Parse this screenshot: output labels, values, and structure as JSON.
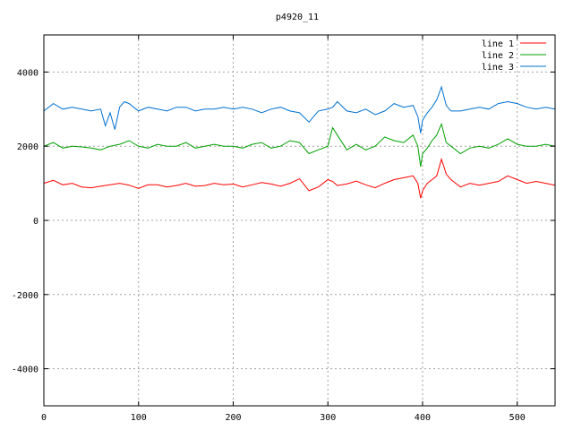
{
  "chart_data": {
    "type": "line",
    "title": "p4920_11",
    "xlabel": "",
    "ylabel": "",
    "xlim": [
      0,
      540
    ],
    "ylim": [
      -5000,
      5000
    ],
    "x_ticks": [
      0,
      100,
      200,
      300,
      400,
      500
    ],
    "y_ticks": [
      -4000,
      -2000,
      0,
      2000,
      4000
    ],
    "grid": true,
    "legend_position": "top-right",
    "series": [
      {
        "name": "line 1",
        "color": "#ff0000",
        "x": [
          0,
          10,
          20,
          30,
          40,
          50,
          60,
          70,
          80,
          90,
          100,
          110,
          120,
          130,
          140,
          150,
          160,
          170,
          180,
          190,
          200,
          210,
          220,
          230,
          240,
          250,
          260,
          270,
          280,
          290,
          300,
          305,
          310,
          320,
          330,
          340,
          350,
          360,
          370,
          380,
          390,
          395,
          398,
          400,
          405,
          410,
          415,
          420,
          425,
          430,
          440,
          450,
          460,
          470,
          480,
          490,
          500,
          510,
          520,
          530,
          540
        ],
        "y": [
          1000,
          1080,
          960,
          1000,
          900,
          880,
          920,
          960,
          1000,
          950,
          860,
          960,
          960,
          900,
          940,
          1000,
          920,
          940,
          1000,
          960,
          980,
          900,
          960,
          1020,
          980,
          920,
          1000,
          1120,
          800,
          900,
          1100,
          1050,
          940,
          980,
          1060,
          960,
          880,
          1000,
          1100,
          1150,
          1200,
          1000,
          600,
          800,
          1000,
          1100,
          1200,
          1650,
          1250,
          1100,
          900,
          1000,
          950,
          1000,
          1050,
          1200,
          1100,
          1000,
          1050,
          1000,
          950
        ]
      },
      {
        "name": "line 2",
        "color": "#00a000",
        "x": [
          0,
          10,
          20,
          30,
          40,
          50,
          60,
          70,
          80,
          90,
          100,
          110,
          120,
          130,
          140,
          150,
          160,
          170,
          180,
          190,
          200,
          210,
          220,
          230,
          240,
          250,
          260,
          270,
          280,
          290,
          300,
          305,
          310,
          320,
          330,
          340,
          350,
          360,
          370,
          380,
          390,
          395,
          398,
          400,
          405,
          410,
          415,
          420,
          425,
          430,
          440,
          450,
          460,
          470,
          480,
          490,
          500,
          510,
          520,
          530,
          540
        ],
        "y": [
          2000,
          2100,
          1950,
          2000,
          1980,
          1950,
          1900,
          2000,
          2050,
          2150,
          2000,
          1950,
          2050,
          2000,
          2000,
          2100,
          1950,
          2000,
          2050,
          2000,
          2000,
          1950,
          2050,
          2100,
          1950,
          2000,
          2150,
          2100,
          1800,
          1900,
          2000,
          2500,
          2300,
          1900,
          2050,
          1900,
          2000,
          2250,
          2150,
          2100,
          2300,
          2000,
          1450,
          1800,
          1950,
          2150,
          2300,
          2600,
          2100,
          2000,
          1800,
          1950,
          2000,
          1950,
          2050,
          2200,
          2050,
          2000,
          2000,
          2050,
          2000
        ]
      },
      {
        "name": "line 3",
        "color": "#0070d0",
        "x": [
          0,
          10,
          20,
          30,
          40,
          50,
          60,
          65,
          70,
          75,
          80,
          85,
          90,
          100,
          110,
          120,
          130,
          140,
          150,
          160,
          170,
          180,
          190,
          200,
          210,
          220,
          230,
          240,
          250,
          260,
          270,
          280,
          290,
          300,
          305,
          310,
          320,
          330,
          340,
          350,
          360,
          370,
          380,
          390,
          395,
          398,
          400,
          405,
          410,
          415,
          420,
          425,
          430,
          440,
          450,
          460,
          470,
          480,
          490,
          500,
          510,
          520,
          530,
          540
        ],
        "y": [
          2950,
          3150,
          3000,
          3050,
          3000,
          2950,
          3000,
          2550,
          2900,
          2450,
          3050,
          3200,
          3150,
          2950,
          3050,
          3000,
          2950,
          3050,
          3050,
          2950,
          3000,
          3000,
          3050,
          3000,
          3050,
          3000,
          2900,
          3000,
          3050,
          2950,
          2900,
          2650,
          2950,
          3000,
          3050,
          3200,
          2950,
          2900,
          3000,
          2850,
          2950,
          3150,
          3050,
          3100,
          2800,
          2350,
          2700,
          2900,
          3050,
          3250,
          3600,
          3100,
          2950,
          2950,
          3000,
          3050,
          3000,
          3150,
          3200,
          3150,
          3050,
          3000,
          3050,
          3000
        ]
      }
    ]
  }
}
